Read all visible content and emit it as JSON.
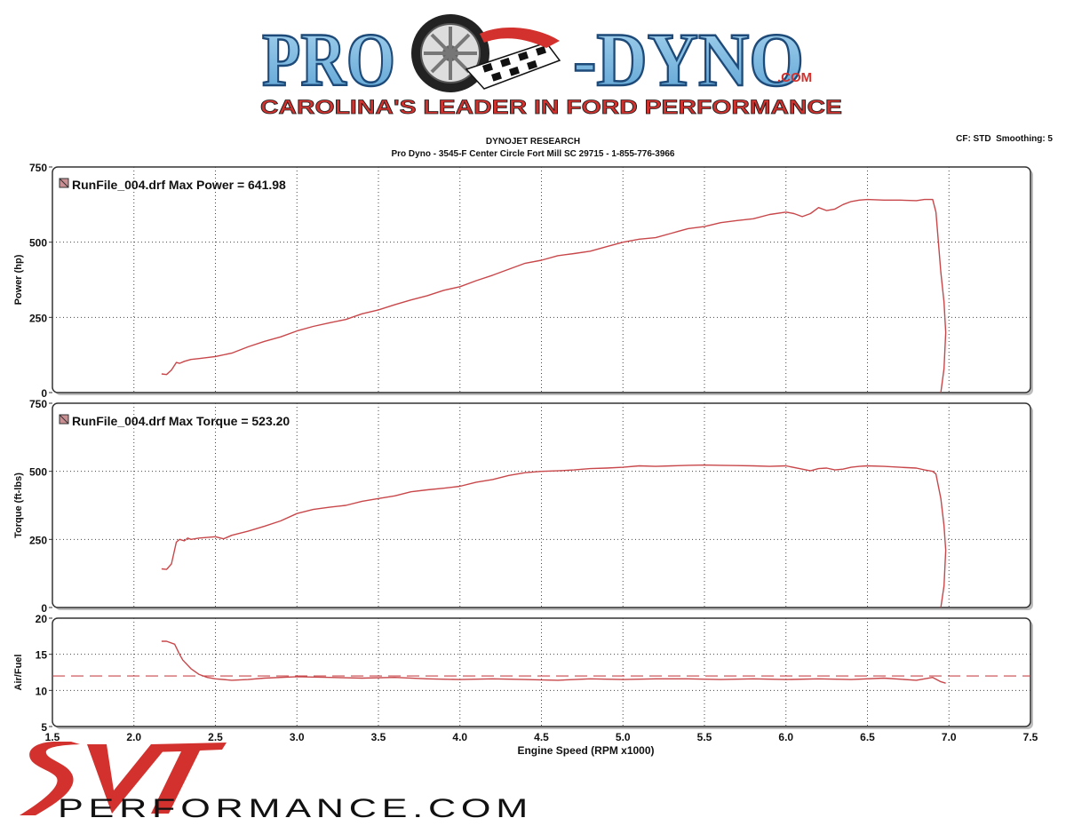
{
  "header": {
    "brand_top": "PRO-DYNO",
    "brand_suffix": ".COM",
    "tagline": "CAROLINA'S LEADER IN FORD PERFORMANCE",
    "title": "DYNOJET RESEARCH",
    "subtitle": "Pro Dyno - 3545-F Center Circle Fort Mill SC 29715 - 1-855-776-3966",
    "settings": "CF: STD  Smoothing: 5"
  },
  "footer": {
    "logo_text": "SVT",
    "site": "PERFORMANCE.COM"
  },
  "colors": {
    "series": "#c8474a",
    "grid": "#444444",
    "logo_blue": "#7ab8dc",
    "logo_red": "#d3312d"
  },
  "chart_data": [
    {
      "type": "line",
      "ylabel": "Power (hp)",
      "xlabel": "",
      "xlim": [
        1.5,
        7.5
      ],
      "ylim": [
        0,
        750
      ],
      "yticks": [
        0,
        250,
        500,
        750
      ],
      "grid": true,
      "legend": "top-left",
      "series": [
        {
          "name": "RunFile_004.drf Max Power = 641.98",
          "x": [
            2.17,
            2.2,
            2.23,
            2.26,
            2.28,
            2.31,
            2.35,
            2.4,
            2.5,
            2.6,
            2.7,
            2.8,
            2.9,
            3.0,
            3.1,
            3.2,
            3.3,
            3.4,
            3.5,
            3.6,
            3.7,
            3.8,
            3.9,
            4.0,
            4.1,
            4.2,
            4.3,
            4.4,
            4.5,
            4.6,
            4.7,
            4.8,
            4.9,
            5.0,
            5.1,
            5.2,
            5.3,
            5.4,
            5.5,
            5.6,
            5.7,
            5.8,
            5.9,
            6.0,
            6.05,
            6.1,
            6.15,
            6.2,
            6.25,
            6.3,
            6.35,
            6.4,
            6.45,
            6.5,
            6.6,
            6.7,
            6.8,
            6.85,
            6.9,
            6.92,
            6.95,
            6.97,
            6.98,
            6.97,
            6.95
          ],
          "values": [
            62,
            60,
            75,
            100,
            97,
            104,
            110,
            113,
            120,
            131,
            152,
            170,
            185,
            205,
            220,
            232,
            243,
            262,
            275,
            292,
            308,
            322,
            340,
            352,
            372,
            390,
            410,
            430,
            440,
            455,
            462,
            470,
            485,
            500,
            510,
            515,
            530,
            545,
            552,
            565,
            572,
            578,
            592,
            600,
            595,
            585,
            595,
            615,
            605,
            610,
            625,
            635,
            640,
            642,
            640,
            640,
            638,
            642,
            642,
            600,
            400,
            300,
            200,
            80,
            0
          ]
        }
      ]
    },
    {
      "type": "line",
      "ylabel": "Torque (ft-lbs)",
      "xlabel": "",
      "xlim": [
        1.5,
        7.5
      ],
      "ylim": [
        0,
        750
      ],
      "yticks": [
        0,
        250,
        500,
        750
      ],
      "grid": true,
      "legend": "top-left",
      "series": [
        {
          "name": "RunFile_004.drf Max Torque = 523.20",
          "x": [
            2.17,
            2.2,
            2.23,
            2.26,
            2.28,
            2.31,
            2.33,
            2.35,
            2.4,
            2.5,
            2.55,
            2.6,
            2.7,
            2.8,
            2.9,
            3.0,
            3.1,
            3.2,
            3.3,
            3.4,
            3.5,
            3.6,
            3.7,
            3.8,
            3.9,
            4.0,
            4.1,
            4.2,
            4.3,
            4.4,
            4.5,
            4.6,
            4.7,
            4.8,
            4.9,
            5.0,
            5.1,
            5.2,
            5.3,
            5.4,
            5.5,
            5.6,
            5.7,
            5.8,
            5.9,
            6.0,
            6.1,
            6.15,
            6.2,
            6.25,
            6.3,
            6.35,
            6.4,
            6.45,
            6.5,
            6.6,
            6.7,
            6.8,
            6.85,
            6.9,
            6.92,
            6.95,
            6.97,
            6.98,
            6.97,
            6.95
          ],
          "values": [
            142,
            140,
            160,
            240,
            250,
            245,
            255,
            250,
            255,
            260,
            252,
            265,
            280,
            298,
            318,
            345,
            360,
            368,
            375,
            390,
            400,
            410,
            425,
            432,
            438,
            445,
            460,
            470,
            485,
            495,
            500,
            502,
            505,
            510,
            512,
            515,
            520,
            518,
            520,
            522,
            523,
            522,
            521,
            520,
            518,
            520,
            508,
            502,
            510,
            512,
            505,
            508,
            515,
            518,
            520,
            518,
            515,
            512,
            505,
            500,
            490,
            400,
            300,
            210,
            80,
            0
          ]
        }
      ]
    },
    {
      "type": "line",
      "ylabel": "Air/Fuel",
      "xlabel": "Engine Speed (RPM x1000)",
      "xlim": [
        1.5,
        7.5
      ],
      "ylim": [
        5,
        20
      ],
      "yticks": [
        5,
        10,
        15,
        20
      ],
      "xticks": [
        1.5,
        2.0,
        2.5,
        3.0,
        3.5,
        4.0,
        4.5,
        5.0,
        5.5,
        6.0,
        6.5,
        7.0,
        7.5
      ],
      "xticklabels": [
        "1.5",
        "2.0",
        "2.5",
        "3.0",
        "3.5",
        "4.0",
        "4.5",
        "5.0",
        "5.5",
        "6.0",
        "6.5",
        "7.0",
        "7.5"
      ],
      "grid": true,
      "reference_line": 12.0,
      "series": [
        {
          "name": "",
          "x": [
            2.17,
            2.2,
            2.25,
            2.28,
            2.3,
            2.35,
            2.4,
            2.45,
            2.5,
            2.6,
            2.7,
            2.8,
            3.0,
            3.2,
            3.4,
            3.6,
            3.8,
            4.0,
            4.2,
            4.4,
            4.6,
            4.8,
            5.0,
            5.2,
            5.4,
            5.6,
            5.8,
            6.0,
            6.2,
            6.4,
            6.6,
            6.8,
            6.9,
            6.95,
            6.98
          ],
          "values": [
            16.8,
            16.8,
            16.4,
            15.0,
            14.2,
            13.0,
            12.2,
            11.8,
            11.6,
            11.4,
            11.5,
            11.7,
            11.9,
            11.8,
            11.7,
            11.8,
            11.6,
            11.5,
            11.6,
            11.5,
            11.4,
            11.6,
            11.5,
            11.6,
            11.6,
            11.5,
            11.6,
            11.5,
            11.6,
            11.5,
            11.7,
            11.4,
            11.8,
            11.2,
            11.0
          ]
        }
      ]
    }
  ]
}
